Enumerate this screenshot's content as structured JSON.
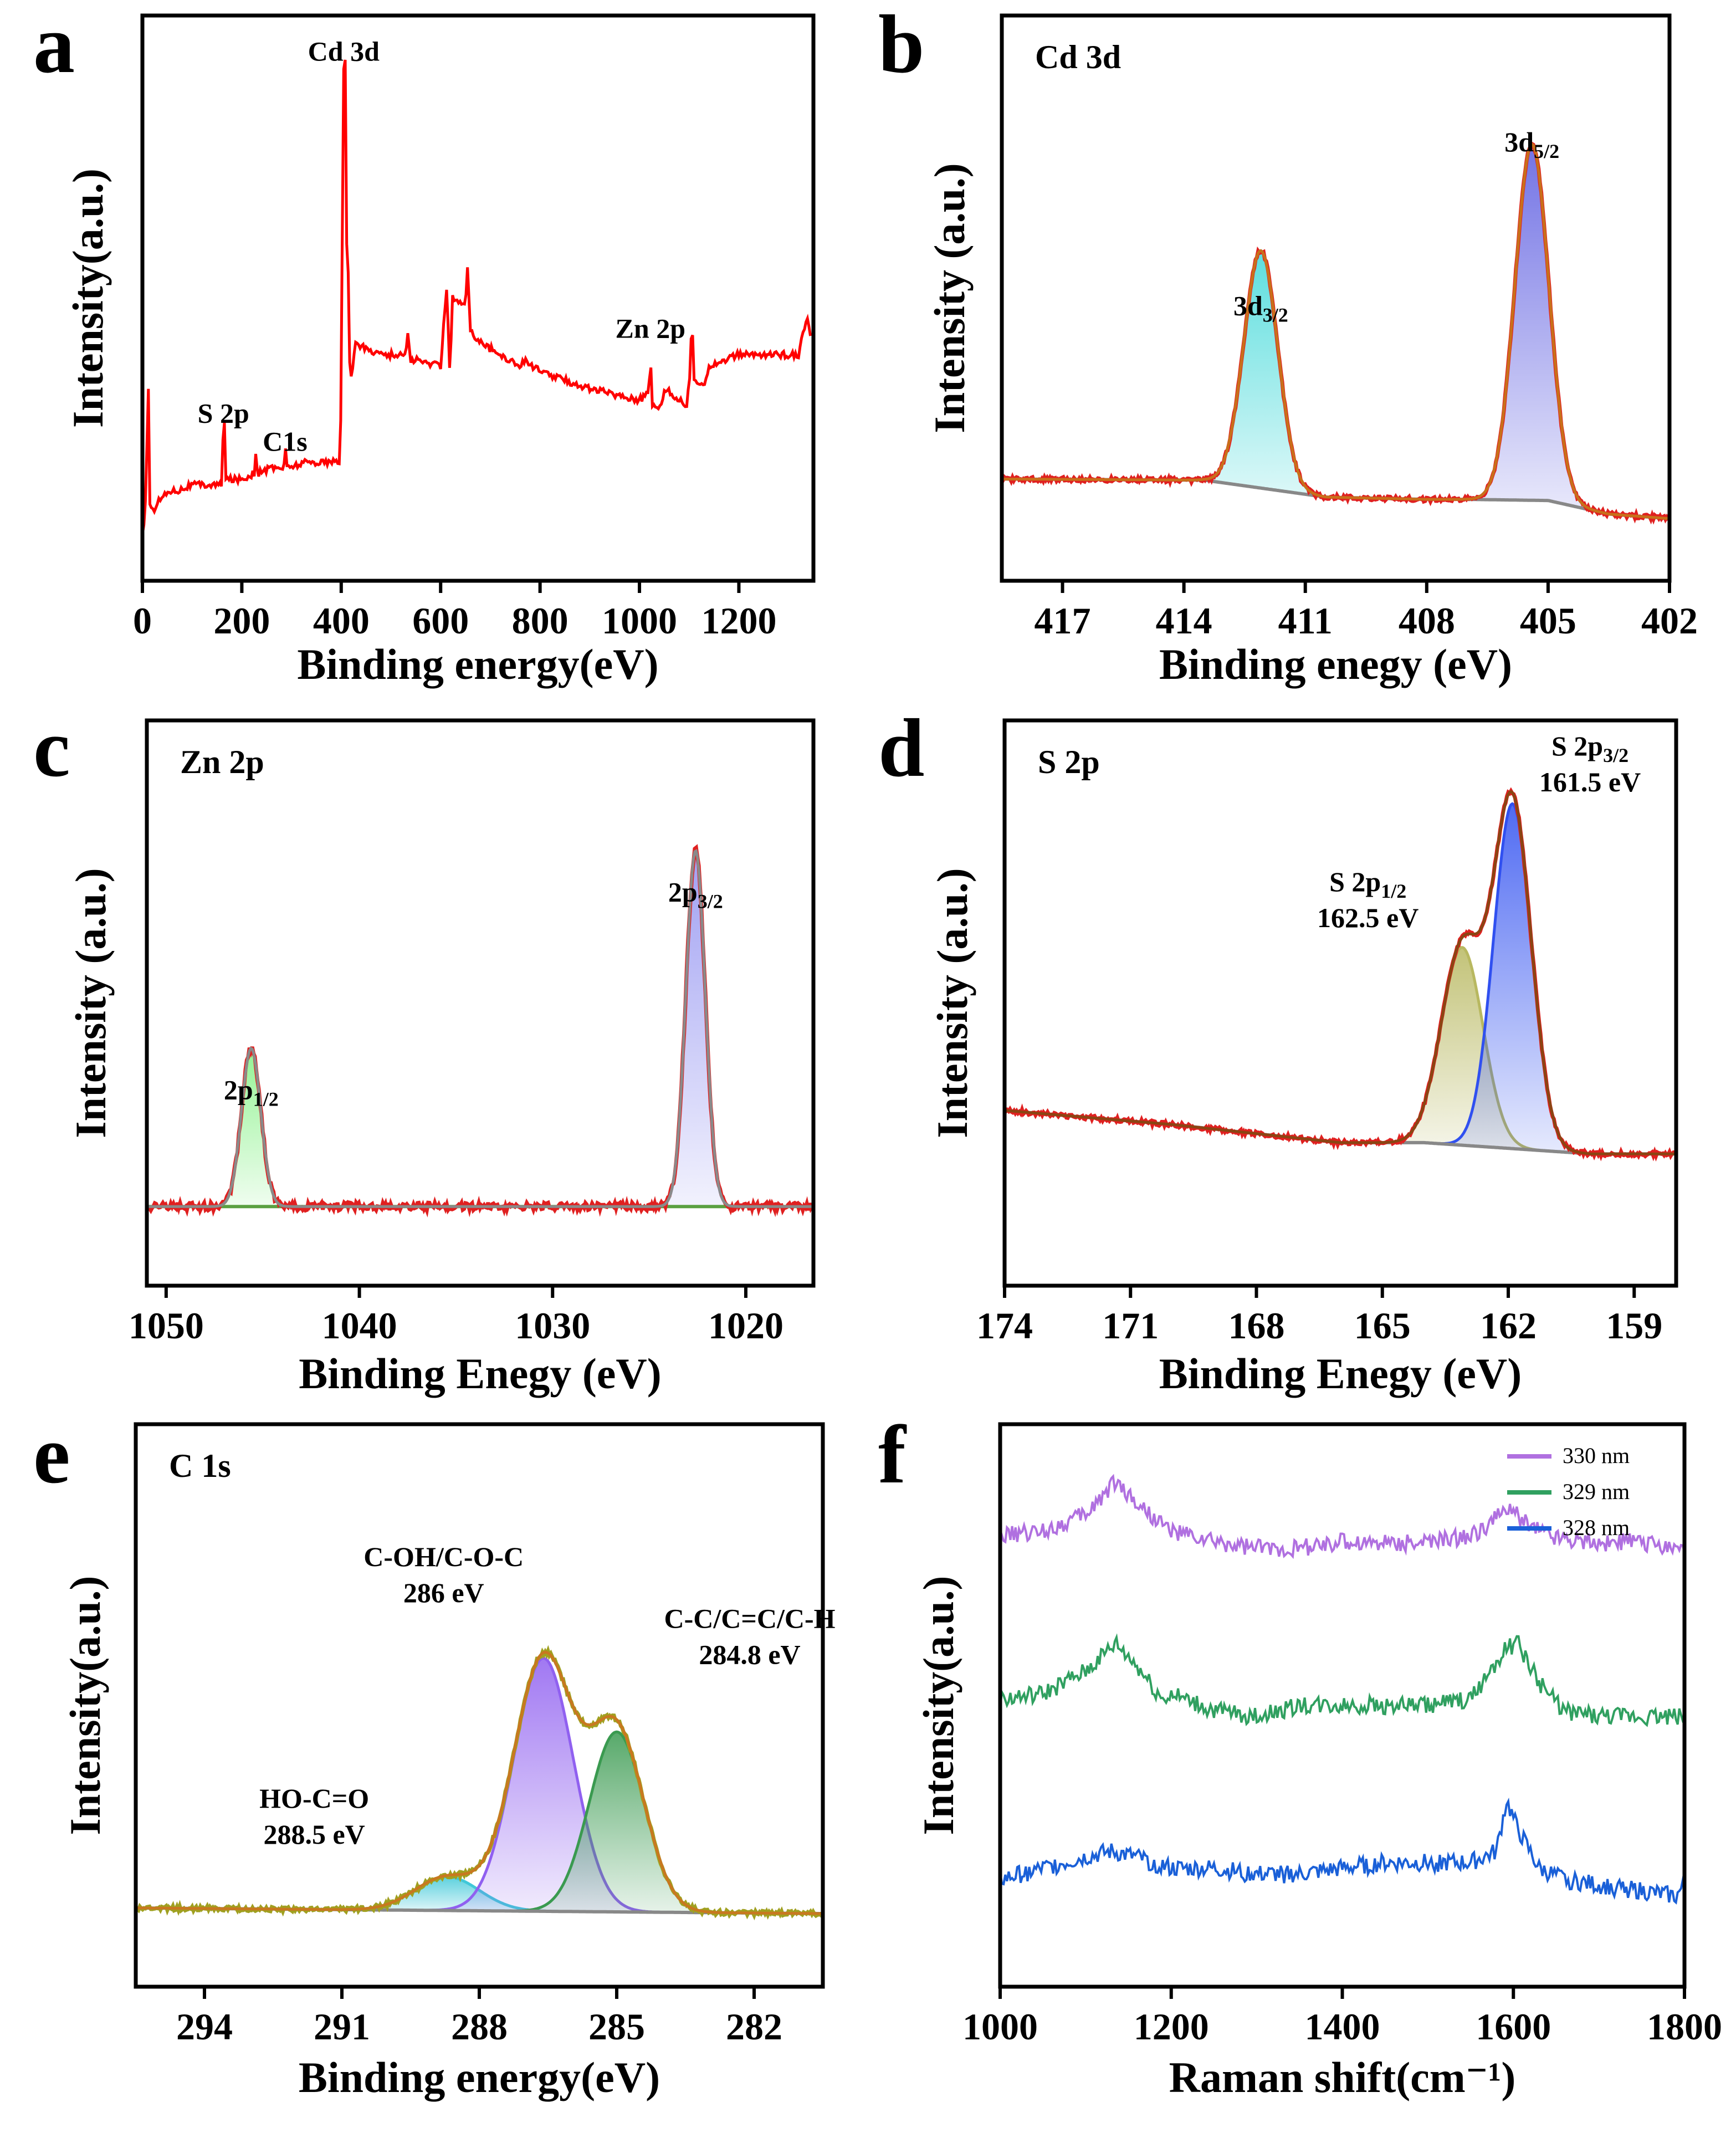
{
  "chart_data": [
    {
      "panel": "a",
      "type": "line",
      "title": "",
      "xlabel": "Binding energy(eV)",
      "ylabel": "Intensity(a.u.)",
      "xlim": [
        0,
        1350
      ],
      "ylim": [
        0,
        100
      ],
      "x_reversed": false,
      "xticks": [
        0,
        200,
        400,
        600,
        800,
        1000,
        1200
      ],
      "xticklabels": [
        "0",
        "200",
        "400",
        "600",
        "800",
        "1000",
        "1200"
      ],
      "colors": {
        "survey": "#ff0000"
      },
      "series": [
        {
          "name": "survey",
          "color": "#ff0000",
          "x": [
            0,
            8,
            10,
            12,
            20,
            30,
            55,
            70,
            100,
            150,
            160,
            163,
            168,
            200,
            225,
            228,
            233,
            260,
            284,
            287,
            290,
            330,
            398,
            403,
            405,
            408,
            410,
            412,
            418,
            430,
            450,
            490,
            500,
            510,
            530,
            534,
            540,
            550,
            600,
            612,
            618,
            625,
            640,
            650,
            654,
            660,
            700,
            760,
            770,
            800,
            900,
            1000,
            1018,
            1022,
            1026,
            1044,
            1050,
            1095,
            1100,
            1106,
            1110,
            1130,
            1140,
            1200,
            1260,
            1300,
            1320,
            1330,
            1338,
            1345
          ],
          "y": [
            8,
            14,
            34,
            14,
            12,
            14,
            16,
            16,
            17,
            17,
            17,
            28,
            18,
            18,
            19,
            22,
            19,
            20,
            20,
            23,
            20,
            21,
            21,
            60,
            90,
            92,
            60,
            55,
            35,
            42,
            41,
            40,
            40,
            40,
            40,
            44,
            39,
            39,
            38,
            52,
            38,
            50,
            49,
            49,
            55,
            44,
            41,
            38,
            39,
            37,
            34,
            32,
            33,
            38,
            31,
            31,
            34,
            31,
            34,
            43,
            35,
            35,
            38,
            40,
            40,
            40,
            40,
            44,
            46,
            43
          ]
        }
      ],
      "annotations": [
        {
          "text": "Cd 3d",
          "x": 405,
          "y": 92
        },
        {
          "text": "S 2p",
          "x": 163,
          "y": 28
        },
        {
          "text": "C1s",
          "x": 287,
          "y": 23
        },
        {
          "text": "Zn 2p",
          "x": 1022,
          "y": 43
        }
      ],
      "panel_label": "a"
    },
    {
      "panel": "b",
      "type": "area",
      "title": "Cd 3d",
      "xlabel": "Binding enegy (eV)",
      "ylabel": "Intensity (a.u.)",
      "xlim": [
        402,
        418.5
      ],
      "ylim": [
        0,
        100
      ],
      "x_reversed": true,
      "xticks": [
        417,
        414,
        411,
        408,
        405,
        402
      ],
      "xticklabels": [
        "417",
        "414",
        "411",
        "408",
        "405",
        "402"
      ],
      "colors": {
        "baseline": "#888888",
        "fill_1": "#3fd8d8",
        "fill_2": "#5a5ae0",
        "envelope": "#c8701a",
        "data": "#e02020"
      },
      "peaks": [
        {
          "label": "3d3/2",
          "center": 412.1,
          "height": 42,
          "sigma": 0.42
        },
        {
          "label": "3d5/2",
          "center": 405.4,
          "height": 63,
          "sigma": 0.42
        }
      ],
      "baseline": {
        "x": [
          418.5,
          413.5,
          410.5,
          408.0,
          407.0,
          405.0,
          403.5,
          402.0
        ],
        "y": [
          18.0,
          17.8,
          14.8,
          14.4,
          14.4,
          14.2,
          11.8,
          11.0
        ]
      },
      "annotations": [
        {
          "text": "3d",
          "sub": "3/2",
          "x": 412.1,
          "y": 47
        },
        {
          "text": "3d",
          "sub": "5/2",
          "x": 405.4,
          "y": 76
        }
      ],
      "panel_label": "b"
    },
    {
      "panel": "c",
      "type": "area",
      "title": "Zn 2p",
      "xlabel": "Binding Enegy (eV)",
      "ylabel": "Intensity (a.u.)",
      "xlim": [
        1016.5,
        1051
      ],
      "ylim": [
        0,
        100
      ],
      "x_reversed": true,
      "xticks": [
        1050,
        1040,
        1030,
        1020
      ],
      "xticklabels": [
        "1050",
        "1040",
        "1030",
        "1020"
      ],
      "colors": {
        "baseline": "#5aa040",
        "fill_1": "#80f080",
        "fill_2": "#9090f0",
        "envelope": "#8a8a8a",
        "data": "#e02020"
      },
      "peaks": [
        {
          "label": "2p1/2",
          "center": 1045.6,
          "height": 28,
          "sigma": 0.5
        },
        {
          "label": "2p3/2",
          "center": 1022.6,
          "height": 63,
          "sigma": 0.5
        }
      ],
      "baseline": {
        "x": [
          1051,
          1016.5
        ],
        "y": [
          14,
          14
        ]
      },
      "annotations": [
        {
          "text": "2p",
          "sub": "1/2",
          "x": 1045.6,
          "y": 33
        },
        {
          "text": "2p",
          "sub": "3/2",
          "x": 1022.6,
          "y": 68
        }
      ],
      "panel_label": "c"
    },
    {
      "panel": "d",
      "type": "area",
      "title": "S 2p",
      "xlabel": "Binding Enegy (eV)",
      "ylabel": "Intensity (a.u.)",
      "xlim": [
        158,
        174
      ],
      "ylim": [
        0,
        100
      ],
      "x_reversed": true,
      "xticks": [
        174,
        171,
        168,
        165,
        162,
        159
      ],
      "xticklabels": [
        "174",
        "171",
        "168",
        "165",
        "162",
        "159"
      ],
      "colors": {
        "baseline": "#888888",
        "fill_1": "#b8b860",
        "fill_2": "#3050f0",
        "envelope": "#8b4513",
        "data": "#e02020"
      },
      "peaks": [
        {
          "label": "S 2p1/2 162.5 eV",
          "center": 163.1,
          "height": 35,
          "sigma": 0.5
        },
        {
          "label": "S 2p3/2 161.5 eV",
          "center": 161.9,
          "height": 61,
          "sigma": 0.45
        }
      ],
      "baseline": {
        "x": [
          174,
          170,
          166,
          164,
          160,
          158
        ],
        "y": [
          31,
          28.5,
          25.3,
          25.3,
          23.3,
          23.3
        ]
      },
      "annotations": [
        {
          "text": "S 2p",
          "sub": "1/2",
          "line2": "162.5 eV",
          "x": 163.1,
          "y": 60
        },
        {
          "text": "S 2p",
          "sub": "3/2",
          "line2": "161.5 eV",
          "x": 161.9,
          "y": 84
        }
      ],
      "panel_label": "d"
    },
    {
      "panel": "e",
      "type": "area",
      "title": "C 1s",
      "xlabel": "Binding energy(eV)",
      "ylabel": "Intensity(a.u.)",
      "xlim": [
        280.5,
        295.5
      ],
      "ylim": [
        0,
        100
      ],
      "x_reversed": true,
      "xticks": [
        294,
        291,
        288,
        285,
        282
      ],
      "xticklabels": [
        "294",
        "291",
        "288",
        "285",
        "282"
      ],
      "colors": {
        "baseline": "#888888",
        "fill_1": "#40c8d8",
        "fill_2": "#9060f0",
        "fill_3": "#3a9a50",
        "envelope": "#c87820",
        "data": "#a0a020"
      },
      "peaks": [
        {
          "label": "HO-C=O 288.5 eV",
          "center": 288.7,
          "height": 6,
          "sigma": 0.7
        },
        {
          "label": "C-OH/C-O-C 286 eV",
          "center": 286.6,
          "height": 45,
          "sigma": 0.65
        },
        {
          "label": "C-C/C=C/C-H 284.8 eV",
          "center": 285.0,
          "height": 32,
          "sigma": 0.6
        }
      ],
      "baseline": {
        "x": [
          295.5,
          280.5
        ],
        "y": [
          14,
          13
        ]
      },
      "annotations": [
        {
          "text": "HO-C=O",
          "line2": "288.5 eV",
          "x": 288.7,
          "y": 20
        },
        {
          "text": "C-OH/C-O-C",
          "line2": "286 eV",
          "x": 286.6,
          "y": 60
        },
        {
          "text": "C-C/C=C/C-H",
          "line2": "284.8 eV",
          "x": 285.0,
          "y": 50
        }
      ],
      "panel_label": "e"
    },
    {
      "panel": "f",
      "type": "line",
      "title": "",
      "xlabel": "Raman shift(cm⁻¹)",
      "ylabel": "Intensity(a.u.)",
      "xlim": [
        1000,
        1800
      ],
      "ylim": [
        0,
        100
      ],
      "x_reversed": false,
      "xticks": [
        1000,
        1200,
        1400,
        1600,
        1800
      ],
      "xticklabels": [
        "1000",
        "1200",
        "1400",
        "1600",
        "1800"
      ],
      "colors": {
        "330 nm": "#b070e0",
        "329 nm": "#30a060",
        "328 nm": "#1a60d8"
      },
      "legend": {
        "position": "top-right",
        "labels": [
          "330 nm",
          "329 nm",
          "328 nm"
        ]
      },
      "series": [
        {
          "name": "330 nm",
          "color": "#b070e0",
          "x": [
            1000,
            1050,
            1100,
            1135,
            1160,
            1200,
            1250,
            1300,
            1350,
            1400,
            1450,
            1500,
            1550,
            1595,
            1620,
            1650,
            1700,
            1750,
            1800
          ],
          "y": [
            80,
            81,
            84,
            90,
            86,
            81,
            79,
            78,
            78,
            79,
            79,
            79,
            80,
            85,
            82,
            80,
            79,
            79,
            78
          ]
        },
        {
          "name": "329 nm",
          "color": "#30a060",
          "x": [
            1000,
            1050,
            1100,
            1135,
            1160,
            1190,
            1200,
            1250,
            1300,
            1350,
            1400,
            1450,
            1500,
            1550,
            1590,
            1605,
            1630,
            1660,
            1700,
            1750,
            1800
          ],
          "y": [
            51,
            52,
            56,
            61,
            57,
            51,
            52,
            49,
            48,
            50,
            50,
            50,
            50,
            51,
            60,
            61,
            54,
            49,
            48,
            48,
            48
          ]
        },
        {
          "name": "328 nm",
          "color": "#1a60d8",
          "x": [
            1000,
            1050,
            1100,
            1130,
            1160,
            1200,
            1250,
            1300,
            1350,
            1400,
            1450,
            1500,
            1550,
            1580,
            1592,
            1605,
            1630,
            1660,
            1700,
            1750,
            1790,
            1800
          ],
          "y": [
            19,
            21,
            23,
            24,
            23,
            21,
            21,
            20,
            20,
            21,
            22,
            22,
            22,
            24,
            33,
            28,
            21,
            19,
            18,
            17,
            16,
            18
          ]
        }
      ],
      "panel_label": "f"
    }
  ]
}
